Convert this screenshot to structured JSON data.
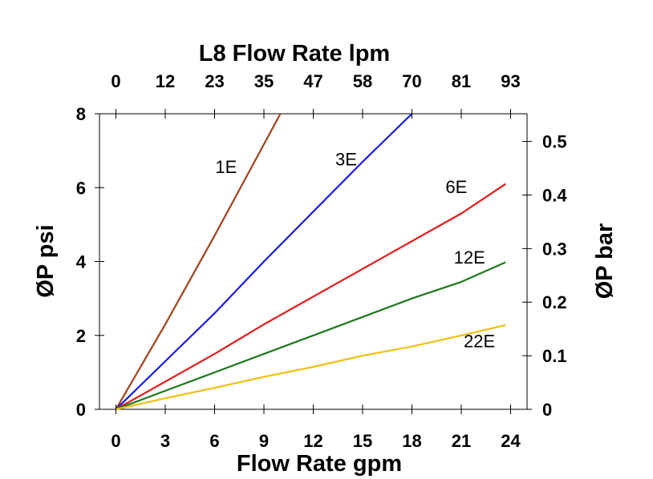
{
  "chart_data": {
    "type": "line",
    "title": "",
    "top_axis": {
      "title": "L8 Flow Rate lpm",
      "tick_labels": [
        "0",
        "12",
        "23",
        "35",
        "47",
        "58",
        "70",
        "81",
        "93"
      ]
    },
    "x_axis": {
      "title": "Flow Rate gpm",
      "range": [
        -1,
        25
      ],
      "ticks": [
        0,
        3,
        6,
        9,
        12,
        15,
        18,
        21,
        24
      ],
      "tick_labels": [
        "0",
        "3",
        "6",
        "9",
        "12",
        "15",
        "18",
        "21",
        "24"
      ]
    },
    "y_axis": {
      "title": "ØP psi",
      "range": [
        0,
        8
      ],
      "ticks": [
        0,
        2,
        4,
        6,
        8
      ],
      "tick_labels": [
        "0",
        "2",
        "4",
        "6",
        "8"
      ]
    },
    "right_axis": {
      "title": "ØP bar",
      "tick_values_psi": [
        0,
        1.45,
        2.9,
        4.35,
        5.8,
        7.25
      ],
      "tick_labels": [
        "0",
        "0.1",
        "0.2",
        "0.3",
        "0.4",
        "0.5"
      ]
    },
    "grid": false,
    "series": [
      {
        "name": "1E",
        "color": "#a0421c",
        "x": [
          0,
          3,
          6,
          10
        ],
        "y": [
          0,
          2.3,
          4.7,
          8
        ],
        "label_at": [
          6.7,
          6.4
        ]
      },
      {
        "name": "3E",
        "color": "#1a1ae6",
        "x": [
          0,
          3,
          6,
          9,
          12,
          15,
          18
        ],
        "y": [
          0,
          1.3,
          2.6,
          4.0,
          5.35,
          6.7,
          8.0
        ],
        "label_at": [
          14,
          6.6
        ]
      },
      {
        "name": "6E",
        "color": "#e41a1a",
        "x": [
          0,
          3,
          6,
          9,
          12,
          15,
          18,
          21,
          23.7
        ],
        "y": [
          0,
          0.75,
          1.5,
          2.3,
          3.05,
          3.8,
          4.55,
          5.3,
          6.1
        ],
        "label_at": [
          20.7,
          5.85
        ]
      },
      {
        "name": "12E",
        "color": "#1a7a1a",
        "x": [
          0,
          3,
          6,
          9,
          12,
          15,
          18,
          21,
          23.7
        ],
        "y": [
          0,
          0.5,
          1.0,
          1.5,
          2.0,
          2.5,
          3.0,
          3.45,
          3.98
        ],
        "label_at": [
          21.5,
          3.95
        ]
      },
      {
        "name": "22E",
        "color": "#f0c010",
        "x": [
          0,
          3,
          6,
          9,
          12,
          15,
          18,
          21,
          23.7
        ],
        "y": [
          0,
          0.3,
          0.58,
          0.88,
          1.15,
          1.45,
          1.7,
          2.0,
          2.28
        ],
        "label_at": [
          22.1,
          1.68
        ]
      }
    ]
  }
}
